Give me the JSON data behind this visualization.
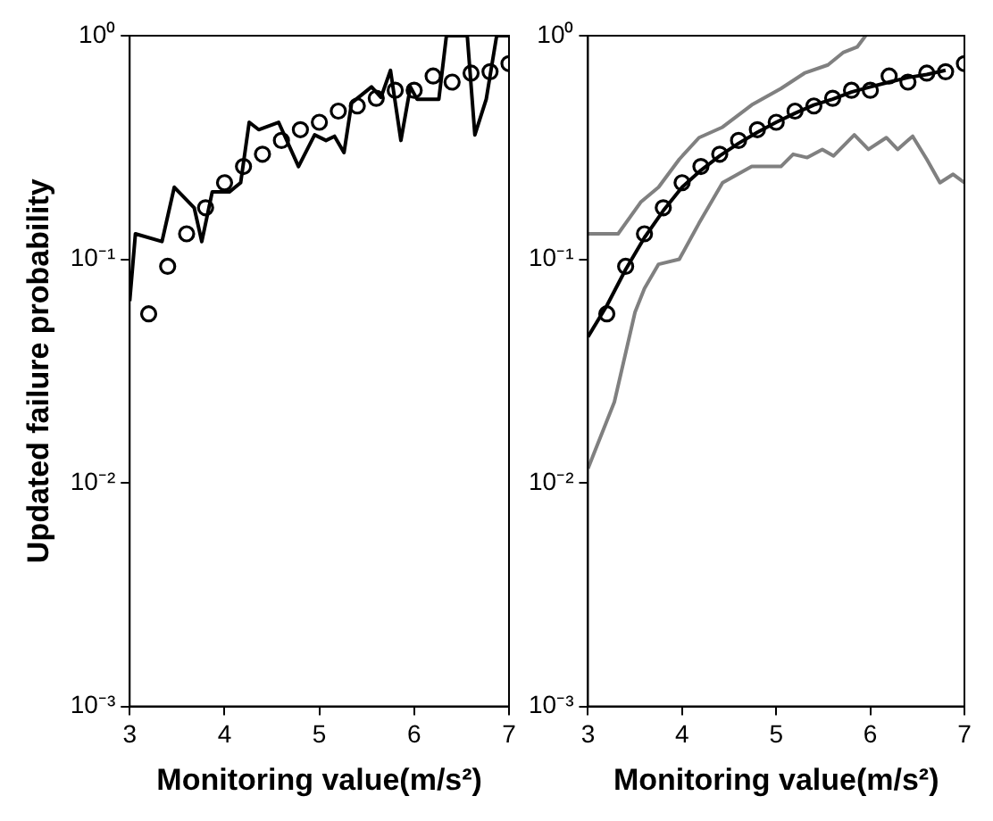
{
  "chart_data": [
    {
      "type": "line",
      "xlabel": "Monitoring value(m/s²)",
      "ylabel": "Updated failure probability",
      "xlim": [
        3,
        7
      ],
      "ylim": [
        0.001,
        1
      ],
      "log": "y",
      "grid": false,
      "legend": false,
      "xticks": [
        3,
        4,
        5,
        6,
        7
      ],
      "yticks": [
        {
          "value": 0.001,
          "label": "10⁻³"
        },
        {
          "value": 0.01,
          "label": "10⁻²"
        },
        {
          "value": 0.1,
          "label": "10⁻¹"
        },
        {
          "value": 1,
          "label": "10⁰"
        }
      ],
      "series": [
        {
          "type": "line",
          "color": "#000000",
          "x": [
            3,
            3.06,
            3.34,
            3.47,
            3.68,
            3.76,
            3.87,
            4.05,
            4.17,
            4.26,
            4.36,
            4.57,
            4.78,
            4.95,
            5.07,
            5.16,
            5.26,
            5.34,
            5.55,
            5.65,
            5.75,
            5.86,
            5.96,
            6.03,
            6.26,
            6.34,
            6.56,
            6.64,
            6.76,
            6.87,
            7
          ],
          "values": [
            0.065,
            0.13,
            0.12,
            0.21,
            0.17,
            0.12,
            0.2,
            0.2,
            0.22,
            0.41,
            0.38,
            0.41,
            0.26,
            0.36,
            0.34,
            0.355,
            0.3,
            0.5,
            0.59,
            0.53,
            0.7,
            0.34,
            0.59,
            0.52,
            0.52,
            1,
            1,
            0.36,
            0.52,
            1,
            1
          ]
        },
        {
          "type": "scatter",
          "marker": "circle",
          "color": "#000000",
          "x": [
            3.2,
            3.4,
            3.6,
            3.8,
            4,
            4.2,
            4.4,
            4.6,
            4.8,
            5,
            5.2,
            5.4,
            5.6,
            5.8,
            6,
            6.2,
            6.4,
            6.6,
            6.8,
            7
          ],
          "values": [
            0.057,
            0.093,
            0.13,
            0.17,
            0.22,
            0.26,
            0.295,
            0.34,
            0.38,
            0.41,
            0.46,
            0.485,
            0.525,
            0.57,
            0.57,
            0.66,
            0.62,
            0.68,
            0.69,
            0.75
          ]
        }
      ]
    },
    {
      "type": "line",
      "xlabel": "Monitoring value(m/s²)",
      "xlim": [
        3,
        7
      ],
      "ylim": [
        0.001,
        1
      ],
      "log": "y",
      "grid": false,
      "legend": false,
      "xticks": [
        3,
        4,
        5,
        6,
        7
      ],
      "yticks": [
        {
          "value": 0.001,
          "label": "10⁻³"
        },
        {
          "value": 0.01,
          "label": "10⁻²"
        },
        {
          "value": 0.1,
          "label": "10⁻¹"
        },
        {
          "value": 1,
          "label": "10⁰"
        }
      ],
      "series": [
        {
          "type": "line",
          "color": "#808080",
          "x": [
            3,
            3.32,
            3.56,
            3.75,
            3.97,
            4.18,
            4.43,
            4.74,
            5.05,
            5.3,
            5.55,
            5.71,
            5.86,
            5.95
          ],
          "values": [
            0.13,
            0.13,
            0.18,
            0.21,
            0.28,
            0.35,
            0.39,
            0.49,
            0.58,
            0.68,
            0.74,
            0.84,
            0.89,
            1
          ]
        },
        {
          "type": "line",
          "color": "#808080",
          "x": [
            3,
            3.28,
            3.5,
            3.6,
            3.75,
            3.97,
            4.18,
            4.43,
            4.74,
            5.05,
            5.18,
            5.33,
            5.49,
            5.61,
            5.83,
            5.98,
            6.17,
            6.29,
            6.45,
            6.6,
            6.74,
            6.88,
            7
          ],
          "values": [
            0.0116,
            0.023,
            0.058,
            0.074,
            0.095,
            0.1,
            0.145,
            0.22,
            0.26,
            0.26,
            0.295,
            0.285,
            0.31,
            0.29,
            0.36,
            0.31,
            0.35,
            0.31,
            0.355,
            0.28,
            0.22,
            0.24,
            0.22
          ]
        },
        {
          "type": "line",
          "color": "#000000",
          "x": [
            3,
            3.2,
            3.4,
            3.6,
            3.8,
            4,
            4.2,
            4.4,
            4.6,
            4.8,
            5,
            5.2,
            5.4,
            5.6,
            5.8,
            6,
            6.2,
            6.4,
            6.6,
            6.8
          ],
          "values": [
            0.045,
            0.062,
            0.09,
            0.125,
            0.165,
            0.21,
            0.25,
            0.29,
            0.33,
            0.37,
            0.41,
            0.45,
            0.49,
            0.52,
            0.56,
            0.59,
            0.62,
            0.65,
            0.67,
            0.7
          ]
        },
        {
          "type": "scatter",
          "marker": "circle",
          "color": "#000000",
          "x": [
            3.2,
            3.4,
            3.6,
            3.8,
            4,
            4.2,
            4.4,
            4.6,
            4.8,
            5,
            5.2,
            5.4,
            5.6,
            5.8,
            6,
            6.2,
            6.4,
            6.6,
            6.8,
            7
          ],
          "values": [
            0.057,
            0.093,
            0.13,
            0.17,
            0.22,
            0.26,
            0.295,
            0.34,
            0.38,
            0.41,
            0.46,
            0.485,
            0.525,
            0.57,
            0.57,
            0.66,
            0.62,
            0.68,
            0.69,
            0.75
          ]
        }
      ]
    }
  ]
}
